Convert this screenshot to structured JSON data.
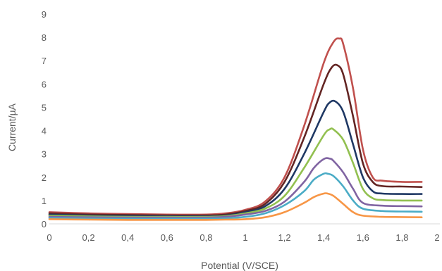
{
  "chart_data": {
    "type": "line",
    "xlabel": "Potential (V/SCE)",
    "ylabel": "Current/µA",
    "xlim": [
      0,
      2
    ],
    "ylim": [
      0,
      9
    ],
    "x_ticks": [
      "0",
      "0,2",
      "0,4",
      "0,6",
      "0,8",
      "1",
      "1,2",
      "1,4",
      "1,6",
      "1,8",
      "2"
    ],
    "y_ticks": [
      "0",
      "1",
      "2",
      "3",
      "4",
      "5",
      "6",
      "7",
      "8",
      "9"
    ],
    "grid": false,
    "legend": "none",
    "series": [
      {
        "color": "#c0504d",
        "x": [
          0,
          0.2,
          0.4,
          0.6,
          0.8,
          0.9,
          1.0,
          1.1,
          1.2,
          1.3,
          1.4,
          1.45,
          1.48,
          1.5,
          1.55,
          1.6,
          1.65,
          1.7,
          1.8,
          1.9
        ],
        "y": [
          0.5,
          0.45,
          0.42,
          0.4,
          0.4,
          0.45,
          0.6,
          0.95,
          2.0,
          4.2,
          6.9,
          7.8,
          7.95,
          7.7,
          5.8,
          3.2,
          2.0,
          1.85,
          1.8,
          1.8
        ]
      },
      {
        "color": "#632523",
        "x": [
          0,
          0.2,
          0.4,
          0.6,
          0.8,
          0.9,
          1.0,
          1.1,
          1.2,
          1.3,
          1.4,
          1.44,
          1.47,
          1.5,
          1.55,
          1.6,
          1.65,
          1.7,
          1.8,
          1.9
        ],
        "y": [
          0.45,
          0.4,
          0.38,
          0.36,
          0.36,
          0.4,
          0.55,
          0.85,
          1.8,
          3.7,
          6.0,
          6.7,
          6.8,
          6.4,
          4.6,
          2.6,
          1.8,
          1.62,
          1.6,
          1.58
        ]
      },
      {
        "color": "#1f3864",
        "x": [
          0,
          0.2,
          0.4,
          0.6,
          0.8,
          0.9,
          1.0,
          1.1,
          1.2,
          1.3,
          1.4,
          1.43,
          1.46,
          1.5,
          1.55,
          1.6,
          1.65,
          1.7,
          1.8,
          1.9
        ],
        "y": [
          0.4,
          0.36,
          0.34,
          0.33,
          0.33,
          0.36,
          0.5,
          0.75,
          1.5,
          3.0,
          4.8,
          5.2,
          5.25,
          4.8,
          3.4,
          2.0,
          1.4,
          1.3,
          1.28,
          1.28
        ]
      },
      {
        "color": "#92c050",
        "x": [
          0,
          0.2,
          0.4,
          0.6,
          0.8,
          0.9,
          1.0,
          1.1,
          1.2,
          1.3,
          1.4,
          1.43,
          1.45,
          1.5,
          1.55,
          1.6,
          1.65,
          1.7,
          1.8,
          1.9
        ],
        "y": [
          0.35,
          0.32,
          0.3,
          0.3,
          0.3,
          0.33,
          0.45,
          0.65,
          1.2,
          2.4,
          3.8,
          4.05,
          4.05,
          3.6,
          2.6,
          1.5,
          1.1,
          1.02,
          1.0,
          1.0
        ]
      },
      {
        "color": "#8064a2",
        "x": [
          0,
          0.2,
          0.4,
          0.6,
          0.8,
          0.9,
          1.0,
          1.1,
          1.2,
          1.3,
          1.35,
          1.4,
          1.43,
          1.45,
          1.5,
          1.55,
          1.6,
          1.7,
          1.8,
          1.9
        ],
        "y": [
          0.3,
          0.28,
          0.27,
          0.27,
          0.27,
          0.3,
          0.4,
          0.55,
          0.95,
          1.8,
          2.4,
          2.78,
          2.8,
          2.7,
          2.2,
          1.5,
          0.9,
          0.78,
          0.76,
          0.75
        ]
      },
      {
        "color": "#4bacc6",
        "x": [
          0,
          0.2,
          0.4,
          0.6,
          0.8,
          0.9,
          1.0,
          1.1,
          1.2,
          1.3,
          1.35,
          1.4,
          1.42,
          1.45,
          1.5,
          1.55,
          1.6,
          1.7,
          1.8,
          1.9
        ],
        "y": [
          0.25,
          0.23,
          0.22,
          0.22,
          0.22,
          0.24,
          0.3,
          0.45,
          0.8,
          1.4,
          1.9,
          2.15,
          2.15,
          2.05,
          1.6,
          1.0,
          0.65,
          0.55,
          0.53,
          0.52
        ]
      },
      {
        "color": "#f79646",
        "x": [
          0,
          0.2,
          0.4,
          0.6,
          0.8,
          0.9,
          1.0,
          1.1,
          1.2,
          1.3,
          1.35,
          1.4,
          1.42,
          1.45,
          1.5,
          1.55,
          1.6,
          1.7,
          1.8,
          1.9
        ],
        "y": [
          0.2,
          0.18,
          0.17,
          0.17,
          0.17,
          0.18,
          0.2,
          0.28,
          0.5,
          0.9,
          1.15,
          1.3,
          1.3,
          1.2,
          0.85,
          0.5,
          0.35,
          0.3,
          0.29,
          0.28
        ]
      }
    ]
  }
}
